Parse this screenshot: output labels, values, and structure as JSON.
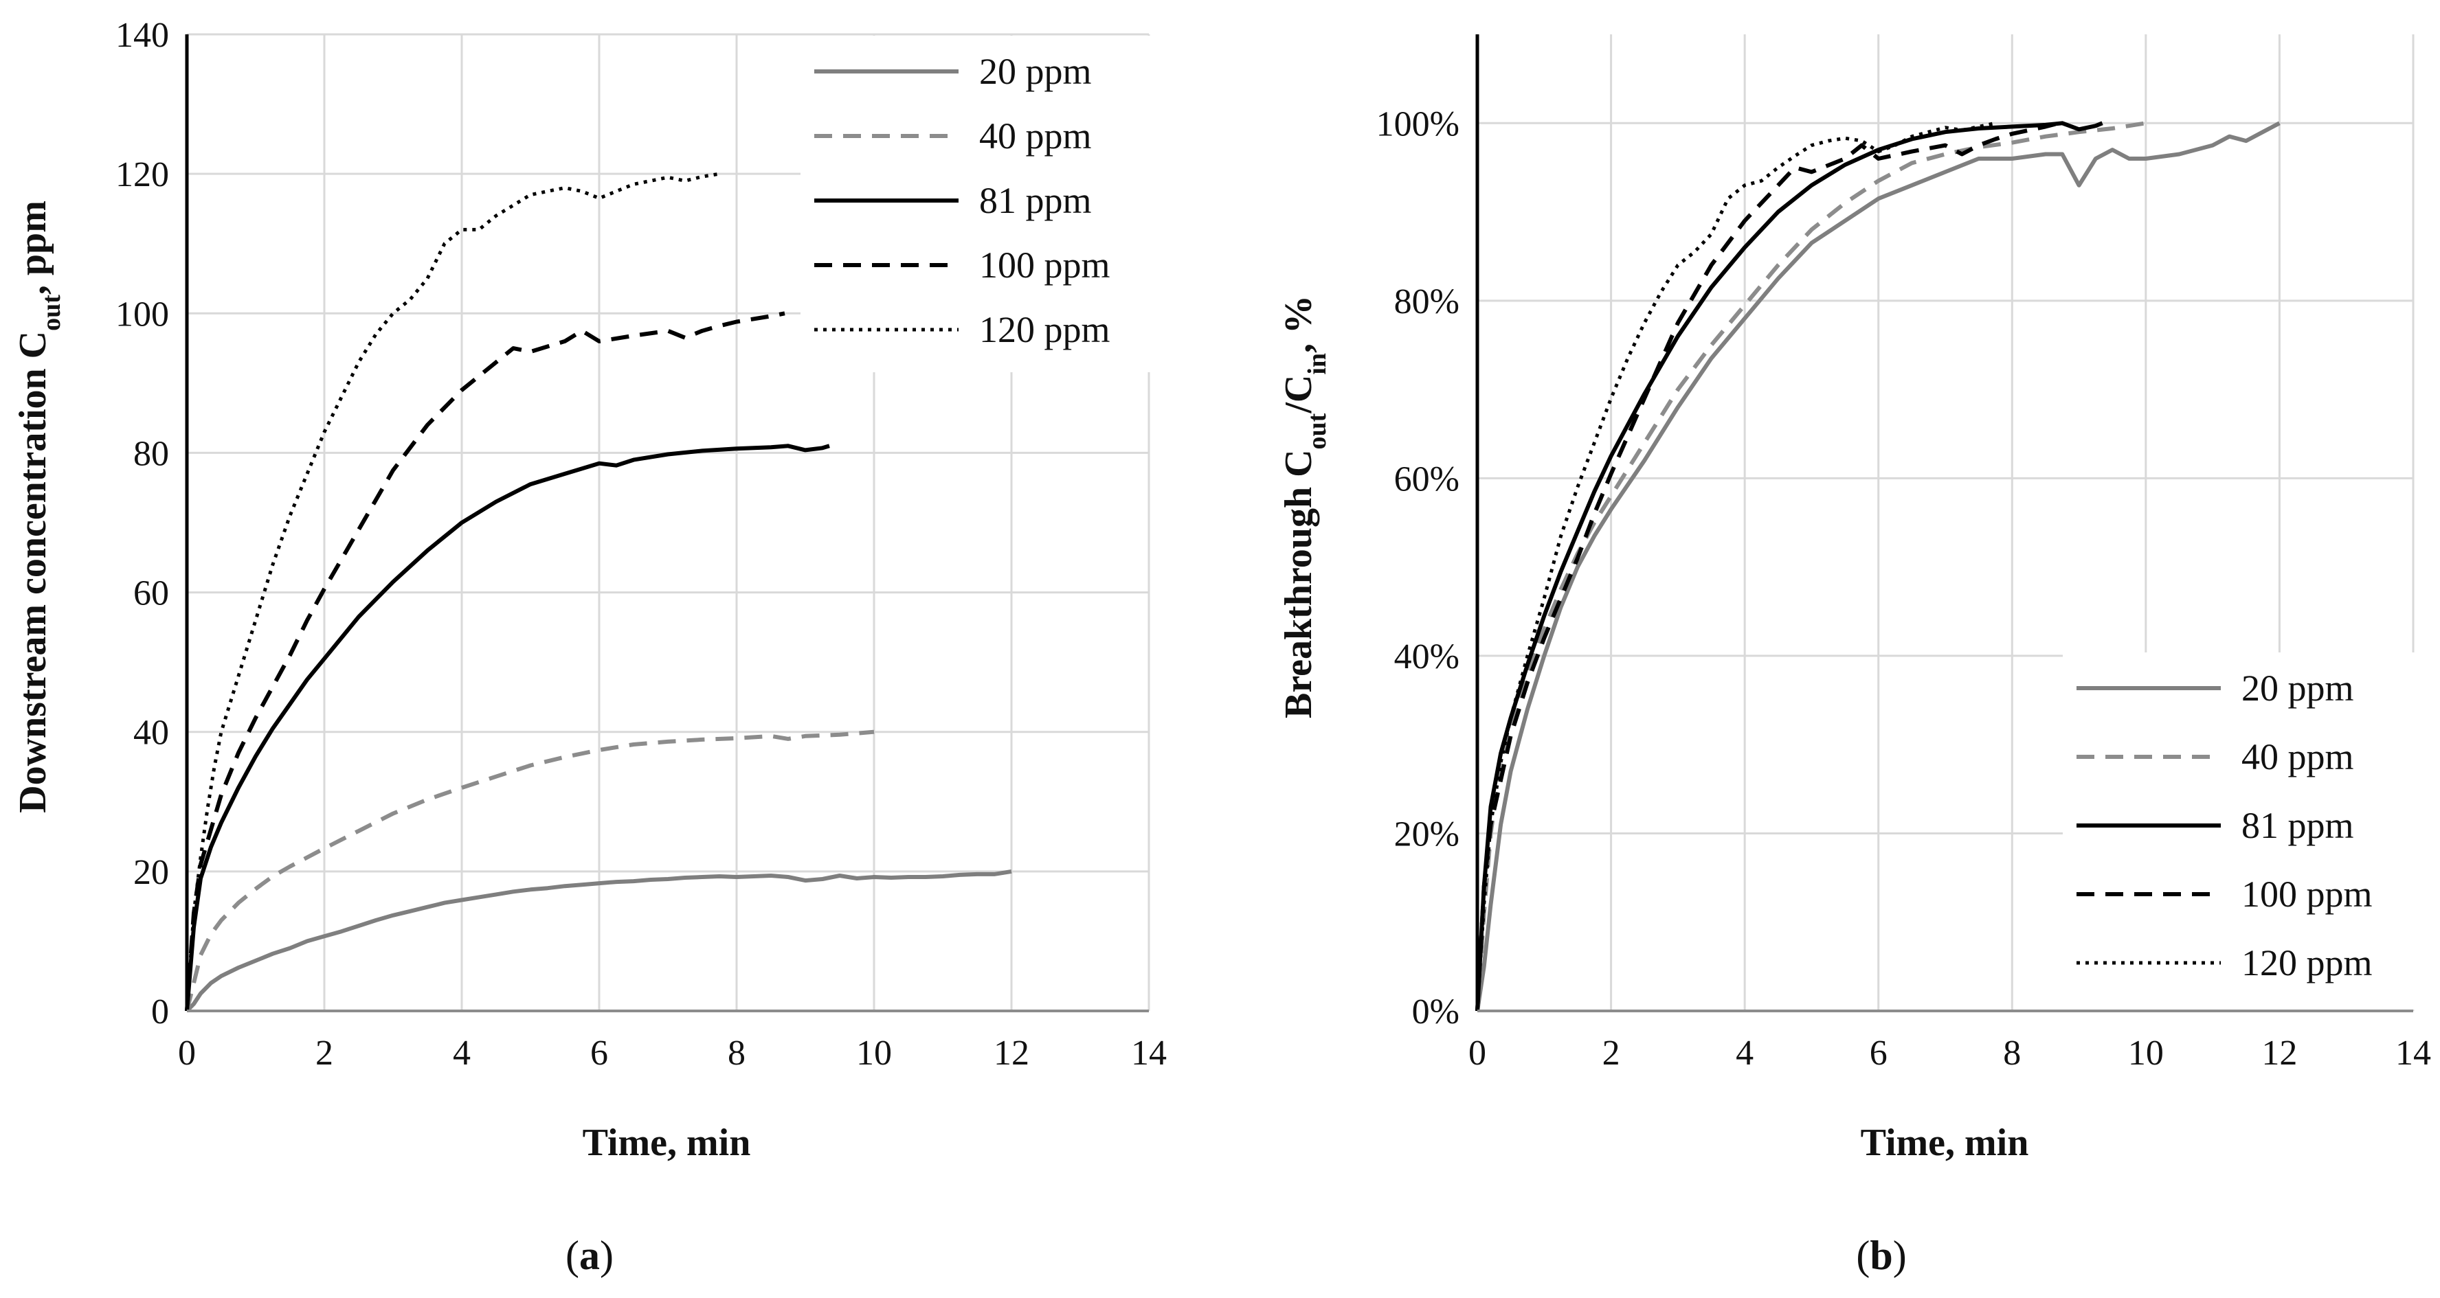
{
  "chart_data": [
    {
      "type": "line",
      "panel_label": "a",
      "title": "",
      "xlabel": "Time, min",
      "ylabel": {
        "main": "Downstream concentration C",
        "sub": "out",
        "tail": ", ppm"
      },
      "xlim": [
        0,
        14
      ],
      "ylim": [
        0,
        140
      ],
      "x_ticks": [
        0,
        2,
        4,
        6,
        8,
        10,
        12,
        14
      ],
      "y_ticks": [
        0,
        20,
        40,
        60,
        80,
        100,
        120,
        140
      ],
      "y_tick_labels": [
        "0",
        "20",
        "40",
        "60",
        "80",
        "100",
        "120",
        "140"
      ],
      "grid": true,
      "legend_position": "top-right",
      "series": [
        {
          "name": "20 ppm",
          "style": "solid",
          "color": "#7f7f7f",
          "x": [
            0,
            0.1,
            0.2,
            0.35,
            0.5,
            0.75,
            1,
            1.25,
            1.5,
            1.75,
            2,
            2.25,
            2.5,
            2.75,
            3,
            3.25,
            3.5,
            3.75,
            4,
            4.25,
            4.5,
            4.75,
            5,
            5.25,
            5.5,
            5.75,
            6,
            6.25,
            6.5,
            6.75,
            7,
            7.25,
            7.5,
            7.75,
            8,
            8.25,
            8.5,
            8.75,
            9,
            9.25,
            9.5,
            9.75,
            10,
            10.25,
            10.5,
            10.75,
            11,
            11.25,
            11.5,
            11.75,
            12
          ],
          "y": [
            0,
            1,
            2.5,
            4,
            5,
            6.2,
            7.2,
            8.2,
            9,
            10,
            10.7,
            11.4,
            12.2,
            13,
            13.7,
            14.3,
            14.9,
            15.5,
            15.9,
            16.3,
            16.7,
            17.1,
            17.4,
            17.6,
            17.9,
            18.1,
            18.3,
            18.5,
            18.6,
            18.8,
            18.9,
            19.1,
            19.2,
            19.3,
            19.2,
            19.3,
            19.4,
            19.2,
            18.7,
            18.9,
            19.4,
            19,
            19.2,
            19.1,
            19.2,
            19.2,
            19.3,
            19.5,
            19.6,
            19.6,
            20
          ]
        },
        {
          "name": "40 ppm",
          "style": "dashed",
          "color": "#8c8c8c",
          "x": [
            0,
            0.1,
            0.2,
            0.35,
            0.5,
            0.75,
            1,
            1.25,
            1.5,
            1.75,
            2,
            2.5,
            3,
            3.5,
            4,
            4.5,
            5,
            5.5,
            6,
            6.5,
            7,
            7.5,
            8,
            8.5,
            8.75,
            9,
            9.5,
            10
          ],
          "y": [
            0,
            4,
            8,
            11,
            13,
            15.5,
            17.5,
            19.3,
            20.7,
            22,
            23.3,
            25.8,
            28.3,
            30.3,
            32,
            33.6,
            35.2,
            36.4,
            37.4,
            38.2,
            38.6,
            38.9,
            39.1,
            39.4,
            39,
            39.4,
            39.6,
            40
          ]
        },
        {
          "name": "81 ppm",
          "style": "solid",
          "color": "#000000",
          "x": [
            0,
            0.1,
            0.2,
            0.35,
            0.5,
            0.75,
            1,
            1.25,
            1.5,
            1.75,
            2,
            2.5,
            3,
            3.5,
            4,
            4.5,
            5,
            5.5,
            6,
            6.25,
            6.5,
            7,
            7.5,
            8,
            8.5,
            8.75,
            9,
            9.25,
            9.35
          ],
          "y": [
            0,
            12,
            19,
            23.5,
            27,
            32,
            36.5,
            40.5,
            44,
            47.5,
            50.5,
            56.5,
            61.5,
            66,
            70,
            73,
            75.5,
            77,
            78.5,
            78.2,
            79,
            79.8,
            80.3,
            80.6,
            80.8,
            81,
            80.4,
            80.7,
            81
          ]
        },
        {
          "name": "100 ppm",
          "style": "dashed",
          "color": "#000000",
          "x": [
            0,
            0.1,
            0.2,
            0.35,
            0.5,
            0.75,
            1,
            1.25,
            1.5,
            1.75,
            2,
            2.5,
            3,
            3.5,
            4,
            4.5,
            4.75,
            5,
            5.5,
            5.75,
            6,
            6.5,
            7,
            7.25,
            7.5,
            7.75,
            8,
            8.5,
            8.7
          ],
          "y": [
            0,
            14,
            21,
            26,
            31,
            37,
            42,
            46.5,
            51,
            56,
            60.5,
            69,
            77.5,
            84,
            89,
            93,
            95,
            94.5,
            96,
            97.5,
            96,
            96.8,
            97.5,
            96.5,
            97.5,
            98.2,
            98.8,
            99.6,
            100
          ]
        },
        {
          "name": "120 ppm",
          "style": "dotted",
          "color": "#000000",
          "x": [
            0,
            0.1,
            0.2,
            0.3,
            0.4,
            0.5,
            0.75,
            1,
            1.25,
            1.5,
            1.75,
            2,
            2.25,
            2.5,
            2.75,
            3,
            3.25,
            3.5,
            3.75,
            4,
            4.25,
            4.5,
            4.75,
            5,
            5.25,
            5.5,
            5.75,
            6,
            6.25,
            6.5,
            6.75,
            7,
            7.25,
            7.5,
            7.75
          ],
          "y": [
            0,
            14,
            22,
            29,
            35,
            40,
            48,
            56,
            64,
            71,
            77,
            83,
            88,
            93,
            97,
            100,
            102,
            105,
            110,
            112,
            112,
            114,
            115.5,
            117,
            117.5,
            118,
            117.5,
            116.5,
            117.5,
            118.5,
            119,
            119.5,
            119,
            119.6,
            120
          ]
        }
      ]
    },
    {
      "type": "line",
      "panel_label": "b",
      "title": "",
      "xlabel": "Time, min",
      "ylabel": {
        "main": "Breakthrough C",
        "sub1": "out",
        "mid": "/C",
        "sub2": "in",
        "tail": ", %"
      },
      "xlim": [
        0,
        14
      ],
      "ylim": [
        0,
        110
      ],
      "x_ticks": [
        0,
        2,
        4,
        6,
        8,
        10,
        12,
        14
      ],
      "y_ticks": [
        0,
        20,
        40,
        60,
        80,
        100
      ],
      "y_tick_labels": [
        "0%",
        "20%",
        "40%",
        "60%",
        "80%",
        "100%"
      ],
      "grid": true,
      "legend_position": "bottom-right",
      "series": [
        {
          "name": "20 ppm",
          "style": "solid",
          "color": "#7f7f7f",
          "x": [
            0,
            0.1,
            0.2,
            0.35,
            0.5,
            0.75,
            1,
            1.25,
            1.5,
            1.75,
            2,
            2.5,
            3,
            3.5,
            4,
            4.5,
            5,
            5.5,
            6,
            6.5,
            7,
            7.5,
            8,
            8.5,
            8.75,
            9,
            9.25,
            9.5,
            9.75,
            10,
            10.5,
            11,
            11.25,
            11.5,
            11.75,
            12
          ],
          "y": [
            0,
            5,
            12,
            21,
            27,
            34,
            40,
            45.5,
            50,
            53.5,
            56.5,
            62,
            68,
            73.5,
            78,
            82.5,
            86.5,
            89,
            91.5,
            93,
            94.5,
            96,
            96,
            96.5,
            96.5,
            93,
            96,
            97,
            96,
            96,
            96.5,
            97.5,
            98.5,
            98,
            99,
            100
          ]
        },
        {
          "name": "40 ppm",
          "style": "dashed",
          "color": "#8c8c8c",
          "x": [
            0,
            0.1,
            0.2,
            0.35,
            0.5,
            0.75,
            1,
            1.25,
            1.5,
            1.75,
            2,
            2.5,
            3,
            3.5,
            4,
            4.5,
            5,
            5.5,
            6,
            6.5,
            7,
            7.5,
            8,
            8.5,
            9,
            9.5,
            10
          ],
          "y": [
            0,
            11,
            20,
            28,
            32.5,
            38,
            43,
            47.5,
            51.5,
            55,
            58,
            64,
            70,
            75,
            79.5,
            84,
            88,
            91,
            93.5,
            95.5,
            96.5,
            97.3,
            97.8,
            98.5,
            99,
            99.4,
            100
          ]
        },
        {
          "name": "81 ppm",
          "style": "solid",
          "color": "#000000",
          "x": [
            0,
            0.1,
            0.2,
            0.35,
            0.5,
            0.75,
            1,
            1.25,
            1.5,
            1.75,
            2,
            2.5,
            3,
            3.5,
            4,
            4.5,
            5,
            5.5,
            6,
            6.5,
            7,
            7.5,
            8,
            8.5,
            8.75,
            9,
            9.25,
            9.35
          ],
          "y": [
            0,
            14,
            23,
            29,
            33,
            39,
            44.5,
            49.5,
            54,
            58.5,
            62.5,
            69.5,
            76,
            81.5,
            86,
            90,
            93,
            95.3,
            97,
            98.2,
            99,
            99.4,
            99.6,
            99.8,
            100,
            99.3,
            99.7,
            100
          ]
        },
        {
          "name": "100 ppm",
          "style": "dashed",
          "color": "#000000",
          "x": [
            0,
            0.1,
            0.2,
            0.35,
            0.5,
            0.75,
            1,
            1.25,
            1.5,
            1.75,
            2,
            2.5,
            3,
            3.5,
            4,
            4.5,
            4.75,
            5,
            5.5,
            5.75,
            6,
            6.5,
            7,
            7.25,
            7.5,
            7.75,
            8,
            8.5,
            8.7
          ],
          "y": [
            0,
            14,
            21,
            26,
            31,
            37,
            42,
            46.5,
            51,
            56,
            60.5,
            69,
            77.5,
            84,
            89,
            93,
            95,
            94.5,
            96,
            97.5,
            96,
            96.8,
            97.5,
            96.5,
            97.5,
            98.2,
            98.8,
            99.6,
            100
          ]
        },
        {
          "name": "120 ppm",
          "style": "dotted",
          "color": "#000000",
          "x": [
            0,
            0.1,
            0.2,
            0.35,
            0.5,
            0.75,
            1,
            1.25,
            1.5,
            1.75,
            2,
            2.25,
            2.5,
            2.75,
            3,
            3.25,
            3.5,
            3.75,
            4,
            4.25,
            4.5,
            4.75,
            5,
            5.25,
            5.5,
            5.75,
            6,
            6.25,
            6.5,
            6.75,
            7,
            7.25,
            7.5,
            7.75
          ],
          "y": [
            0,
            12,
            21,
            28,
            33,
            40,
            46.5,
            53.5,
            59,
            64,
            69,
            73.5,
            77.5,
            81,
            84,
            85.5,
            87.5,
            91.5,
            93,
            93.5,
            95,
            96.3,
            97.5,
            98,
            98.3,
            98,
            96.8,
            97.5,
            98.5,
            99,
            99.5,
            99.2,
            99.6,
            100
          ]
        }
      ]
    }
  ]
}
